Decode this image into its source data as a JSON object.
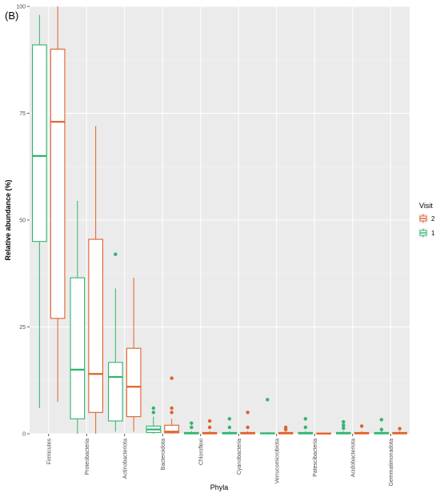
{
  "panel_label": "(B)",
  "colors": {
    "visit2": "#e0602a",
    "visit1": "#2fb56f",
    "panel": "#ebebeb"
  },
  "legend": {
    "title": "Visit",
    "entries": [
      {
        "label": "2",
        "series": "2"
      },
      {
        "label": "1",
        "series": "1"
      }
    ]
  },
  "chart_data": {
    "type": "box",
    "xlabel": "Phyla",
    "ylabel": "Relative abundance (%)",
    "ylim": [
      0,
      100
    ],
    "yticks": [
      "0",
      "25",
      "50",
      "75",
      "100"
    ],
    "grid": true,
    "legend_position": "right",
    "categories": [
      "Firmicutes",
      "Proteobacteria",
      "Actinobacteriota",
      "Bacteroidota",
      "Chloroflexi",
      "Cyanobacteria",
      "Verrucomicrobiota",
      "Patescibacteria",
      "Acidobacteriota",
      "Gemmatimonadota"
    ],
    "series": [
      {
        "name": "1",
        "boxes": [
          {
            "min": 6,
            "q1": 45,
            "median": 65,
            "q3": 91,
            "max": 98,
            "outliers": []
          },
          {
            "min": 0,
            "q1": 3.5,
            "median": 15,
            "q3": 36.5,
            "max": 54.5,
            "outliers": []
          },
          {
            "min": 0.5,
            "q1": 3,
            "median": 13.3,
            "q3": 16.7,
            "max": 34,
            "outliers": [
              42
            ]
          },
          {
            "min": 0,
            "q1": 0.3,
            "median": 1,
            "q3": 1.8,
            "max": 4,
            "outliers": [
              5,
              6
            ]
          },
          {
            "min": 0,
            "q1": 0,
            "median": 0.1,
            "q3": 0.3,
            "max": 0.6,
            "outliers": [
              2.5,
              1.5
            ]
          },
          {
            "min": 0,
            "q1": 0,
            "median": 0.1,
            "q3": 0.3,
            "max": 0.6,
            "outliers": [
              3.5,
              1.5
            ]
          },
          {
            "min": 0,
            "q1": 0,
            "median": 0.1,
            "q3": 0.2,
            "max": 0.4,
            "outliers": [
              8
            ]
          },
          {
            "min": 0,
            "q1": 0,
            "median": 0.1,
            "q3": 0.3,
            "max": 0.6,
            "outliers": [
              3.5,
              1.5
            ]
          },
          {
            "min": 0,
            "q1": 0,
            "median": 0.1,
            "q3": 0.3,
            "max": 0.6,
            "outliers": [
              2.8,
              2,
              1.3
            ]
          },
          {
            "min": 0,
            "q1": 0,
            "median": 0.1,
            "q3": 0.3,
            "max": 0.6,
            "outliers": [
              3.3,
              1
            ]
          }
        ]
      },
      {
        "name": "2",
        "boxes": [
          {
            "min": 7.5,
            "q1": 27,
            "median": 73,
            "q3": 90,
            "max": 100,
            "outliers": []
          },
          {
            "min": 0,
            "q1": 5,
            "median": 14,
            "q3": 45.5,
            "max": 72,
            "outliers": []
          },
          {
            "min": 0.5,
            "q1": 4,
            "median": 11,
            "q3": 20,
            "max": 36.5,
            "outliers": []
          },
          {
            "min": 0,
            "q1": 0.2,
            "median": 0.5,
            "q3": 2,
            "max": 3.5,
            "outliers": [
              13,
              6,
              5
            ]
          },
          {
            "min": 0,
            "q1": 0,
            "median": 0.1,
            "q3": 0.3,
            "max": 0.6,
            "outliers": [
              3,
              1.5
            ]
          },
          {
            "min": 0,
            "q1": 0,
            "median": 0.1,
            "q3": 0.3,
            "max": 0.6,
            "outliers": [
              5,
              1.5
            ]
          },
          {
            "min": 0,
            "q1": 0,
            "median": 0.1,
            "q3": 0.3,
            "max": 0.6,
            "outliers": [
              1.5,
              1
            ]
          },
          {
            "min": 0,
            "q1": 0,
            "median": 0.05,
            "q3": 0.15,
            "max": 0.3,
            "outliers": []
          },
          {
            "min": 0,
            "q1": 0,
            "median": 0.1,
            "q3": 0.3,
            "max": 0.6,
            "outliers": [
              1.8
            ]
          },
          {
            "min": 0,
            "q1": 0,
            "median": 0.1,
            "q3": 0.3,
            "max": 0.6,
            "outliers": [
              1.2
            ]
          }
        ]
      }
    ]
  }
}
